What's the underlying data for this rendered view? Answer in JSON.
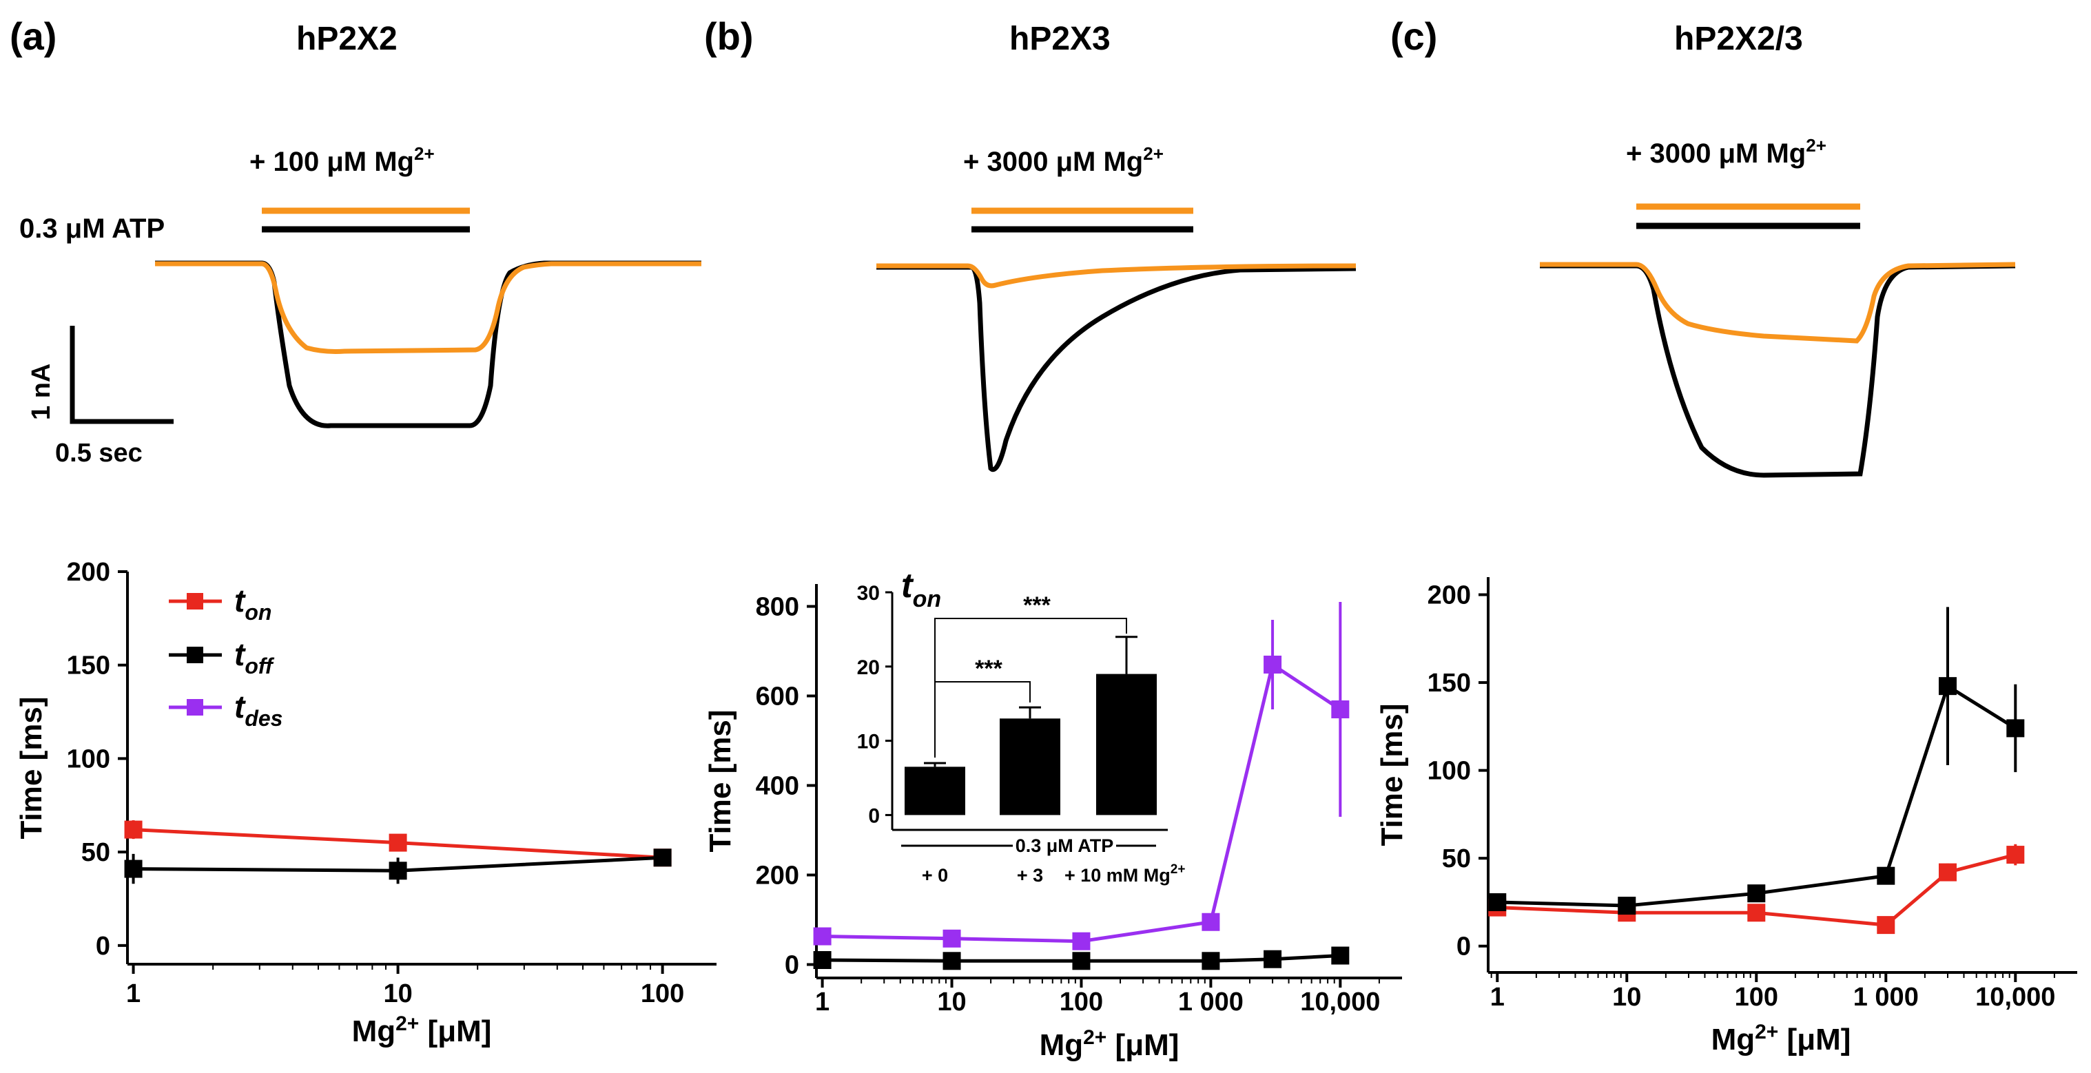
{
  "colors": {
    "control": "#000000",
    "mg": "#f7941d",
    "t_on": "#e8281e",
    "t_off": "#000000",
    "t_des": "#9a2ff0"
  },
  "panels": [
    {
      "label": "(a)",
      "title": "hP2X2",
      "condition": {
        "mg_prefix": "+ 100 μM Mg",
        "mg_sup": "2+",
        "atp": "0.3 μM ATP"
      },
      "scalebar": {
        "y_label": "1 nA",
        "x_label": "0.5 sec"
      }
    },
    {
      "label": "(b)",
      "title": "hP2X3",
      "condition": {
        "mg_prefix": "+ 3000 μM Mg",
        "mg_sup": "2+"
      }
    },
    {
      "label": "(c)",
      "title": "hP2X2/3",
      "condition": {
        "mg_prefix": "+ 3000 μM Mg",
        "mg_sup": "2+"
      }
    }
  ],
  "legend": {
    "t_on": [
      "t",
      "on"
    ],
    "t_off": [
      "t",
      "off"
    ],
    "t_des": [
      "t",
      "des"
    ]
  },
  "inset": {
    "title": [
      "t",
      "on"
    ],
    "atp_label": "0.3 μM ATP",
    "categories": [
      "+ 0",
      "+ 3",
      "+ 10 mM Mg"
    ],
    "cat3_sup": "2+",
    "values": [
      6.5,
      13,
      19
    ],
    "errors": [
      0.5,
      1.5,
      5
    ],
    "ylim": [
      -2,
      30
    ],
    "yticks": [
      0,
      10,
      20,
      30
    ],
    "significance": [
      "***",
      "***"
    ]
  },
  "chart_data": [
    {
      "type": "line",
      "panel": "a",
      "xlabel": "Mg2+ [μM]",
      "ylabel": "Time [ms]",
      "xscale": "log",
      "xlim": [
        0.95,
        160
      ],
      "ylim": [
        -10,
        200
      ],
      "xticks": [
        {
          "v": 1,
          "t": "1"
        },
        {
          "v": 10,
          "t": "10"
        },
        {
          "v": 100,
          "t": "100"
        }
      ],
      "yticks": [
        0,
        50,
        100,
        150,
        200
      ],
      "series": [
        {
          "name": "t_on",
          "color": "#e8281e",
          "x": [
            1,
            10,
            100
          ],
          "values": [
            62,
            55,
            47
          ],
          "err": [
            5,
            4,
            4
          ]
        },
        {
          "name": "t_off",
          "color": "#000000",
          "x": [
            1,
            10,
            100
          ],
          "values": [
            41,
            40,
            47
          ],
          "err": [
            8,
            7,
            4
          ]
        }
      ]
    },
    {
      "type": "line",
      "panel": "b",
      "xlabel": "Mg2+ [μM]",
      "ylabel": "Time [ms]",
      "xscale": "log",
      "xlim": [
        0.9,
        30000
      ],
      "ylim": [
        -30,
        850
      ],
      "xticks": [
        {
          "v": 1,
          "t": "1"
        },
        {
          "v": 10,
          "t": "10"
        },
        {
          "v": 100,
          "t": "100"
        },
        {
          "v": 1000,
          "t": "1 000"
        },
        {
          "v": 10000,
          "t": "10,000"
        }
      ],
      "yticks": [
        0,
        200,
        400,
        600,
        800
      ],
      "series": [
        {
          "name": "t_des",
          "color": "#9a2ff0",
          "x": [
            1,
            10,
            100,
            1000,
            3000,
            10000
          ],
          "values": [
            63,
            58,
            52,
            95,
            670,
            570
          ],
          "err": [
            5,
            5,
            5,
            8,
            100,
            240
          ]
        },
        {
          "name": "t_off",
          "color": "#000000",
          "x": [
            1,
            10,
            100,
            1000,
            3000,
            10000
          ],
          "values": [
            10,
            8,
            8,
            8,
            12,
            20
          ],
          "err": [
            2,
            2,
            2,
            2,
            3,
            4
          ]
        }
      ]
    },
    {
      "type": "line",
      "panel": "c",
      "xlabel": "Mg2+ [μM]",
      "ylabel": "Time [ms]",
      "xscale": "log",
      "xlim": [
        0.85,
        30000
      ],
      "ylim": [
        -15,
        210
      ],
      "xticks": [
        {
          "v": 1,
          "t": "1"
        },
        {
          "v": 10,
          "t": "10"
        },
        {
          "v": 100,
          "t": "100"
        },
        {
          "v": 1000,
          "t": "1 000"
        },
        {
          "v": 10000,
          "t": "10,000"
        }
      ],
      "yticks": [
        0,
        50,
        100,
        150,
        200
      ],
      "series": [
        {
          "name": "t_on",
          "color": "#e8281e",
          "x": [
            1,
            10,
            100,
            1000,
            3000,
            10000
          ],
          "values": [
            22,
            19,
            19,
            12,
            42,
            52
          ],
          "err": [
            3,
            3,
            3,
            2,
            5,
            6
          ]
        },
        {
          "name": "t_off",
          "color": "#000000",
          "x": [
            1,
            10,
            100,
            1000,
            3000,
            10000
          ],
          "values": [
            25,
            23,
            30,
            40,
            148,
            124
          ],
          "err": [
            4,
            4,
            4,
            5,
            45,
            25
          ]
        }
      ]
    }
  ]
}
